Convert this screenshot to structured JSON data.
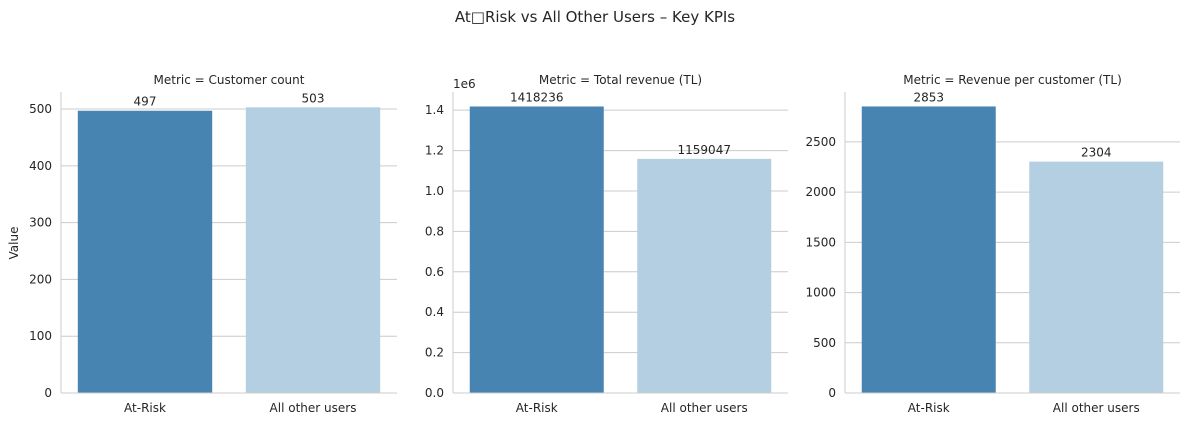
{
  "figure": {
    "suptitle": "At□Risk vs All Other Users – Key KPIs",
    "ylabel": "Value"
  },
  "chart_data": [
    {
      "type": "bar",
      "title": "Metric = Customer count",
      "categories": [
        "At-Risk",
        "All other users"
      ],
      "values": [
        497,
        503
      ],
      "data_labels": [
        "497",
        "503"
      ],
      "colors": [
        "#4884b2",
        "#b3cfe1"
      ],
      "ylim": [
        0,
        530
      ],
      "yticks": [
        0,
        100,
        200,
        300,
        400,
        500
      ],
      "ytick_labels": [
        "0",
        "100",
        "200",
        "300",
        "400",
        "500"
      ],
      "offset_text": "",
      "grid": true
    },
    {
      "type": "bar",
      "title": "Metric = Total revenue (TL)",
      "categories": [
        "At-Risk",
        "All other users"
      ],
      "values": [
        1418236,
        1159047
      ],
      "data_labels": [
        "1418236",
        "1159047"
      ],
      "colors": [
        "#4884b2",
        "#b3cfe1"
      ],
      "ylim": [
        0,
        1490000
      ],
      "yticks": [
        0,
        200000,
        400000,
        600000,
        800000,
        1000000,
        1200000,
        1400000
      ],
      "ytick_labels": [
        "0.0",
        "0.2",
        "0.4",
        "0.6",
        "0.8",
        "1.0",
        "1.2",
        "1.4"
      ],
      "offset_text": "1e6",
      "grid": true
    },
    {
      "type": "bar",
      "title": "Metric = Revenue per customer (TL)",
      "categories": [
        "At-Risk",
        "All other users"
      ],
      "values": [
        2853,
        2304
      ],
      "data_labels": [
        "2853",
        "2304"
      ],
      "colors": [
        "#4884b2",
        "#b3cfe1"
      ],
      "ylim": [
        0,
        2997
      ],
      "yticks": [
        0,
        500,
        1000,
        1500,
        2000,
        2500
      ],
      "ytick_labels": [
        "0",
        "500",
        "1000",
        "1500",
        "2000",
        "2500"
      ],
      "offset_text": "",
      "grid": true
    }
  ]
}
